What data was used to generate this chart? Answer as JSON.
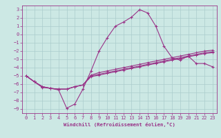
{
  "xlabel": "Windchill (Refroidissement éolien,°C)",
  "bg_color": "#cce8e4",
  "line_color": "#993388",
  "grid_color": "#aacccc",
  "x_values": [
    0,
    1,
    2,
    3,
    4,
    5,
    6,
    7,
    8,
    9,
    10,
    11,
    12,
    13,
    14,
    15,
    16,
    17,
    18,
    19,
    20,
    21,
    22,
    23
  ],
  "line_main": [
    -5.0,
    -5.7,
    -6.4,
    -6.5,
    -6.7,
    -8.9,
    -8.4,
    -6.6,
    -4.4,
    -2.0,
    -0.4,
    1.0,
    1.5,
    2.1,
    3.0,
    2.6,
    1.0,
    -1.4,
    -2.8,
    -3.1,
    -2.6,
    -3.5,
    -3.5,
    -3.9
  ],
  "line_flat1": [
    -5.0,
    -5.7,
    -6.3,
    -6.5,
    -6.6,
    -6.6,
    -6.3,
    -6.1,
    -4.9,
    -4.6,
    -4.4,
    -4.2,
    -4.0,
    -3.8,
    -3.6,
    -3.4,
    -3.2,
    -3.0,
    -2.8,
    -2.6,
    -2.4,
    -2.2,
    -2.0,
    -1.9
  ],
  "line_flat2": [
    -5.0,
    -5.7,
    -6.3,
    -6.5,
    -6.6,
    -6.6,
    -6.3,
    -6.1,
    -5.0,
    -4.8,
    -4.6,
    -4.4,
    -4.2,
    -4.0,
    -3.8,
    -3.6,
    -3.4,
    -3.2,
    -3.0,
    -2.8,
    -2.6,
    -2.4,
    -2.2,
    -2.1
  ],
  "line_flat3": [
    -5.0,
    -5.7,
    -6.3,
    -6.5,
    -6.6,
    -6.6,
    -6.3,
    -6.1,
    -5.1,
    -4.9,
    -4.7,
    -4.5,
    -4.3,
    -4.1,
    -3.9,
    -3.7,
    -3.5,
    -3.3,
    -3.1,
    -2.9,
    -2.7,
    -2.5,
    -2.3,
    -2.2
  ],
  "ylim": [
    -9.5,
    3.5
  ],
  "xlim": [
    -0.5,
    23.5
  ],
  "yticks": [
    3,
    2,
    1,
    0,
    -1,
    -2,
    -3,
    -4,
    -5,
    -6,
    -7,
    -8,
    -9
  ],
  "xticks": [
    0,
    1,
    2,
    3,
    4,
    5,
    6,
    7,
    8,
    9,
    10,
    11,
    12,
    13,
    14,
    15,
    16,
    17,
    18,
    19,
    20,
    21,
    22,
    23
  ],
  "font_size_tick": 5.0,
  "font_size_xlabel": 5.2,
  "lw": 0.8,
  "ms": 3.0
}
